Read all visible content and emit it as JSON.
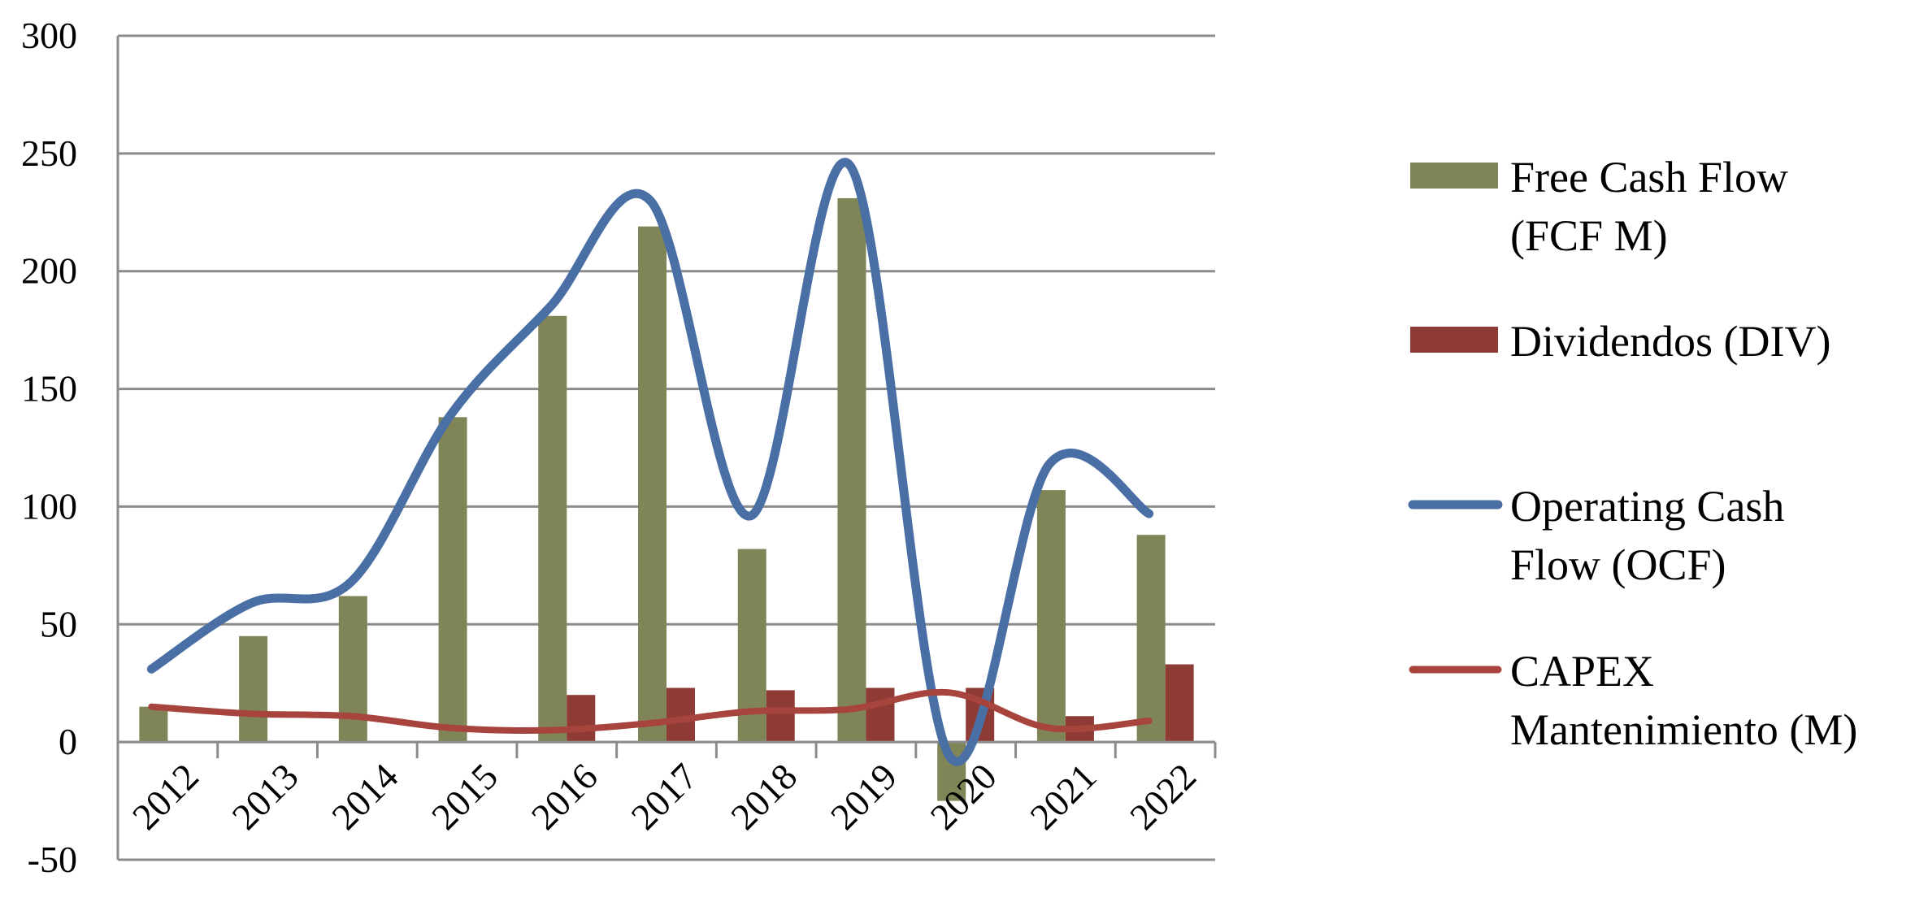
{
  "chart_data": {
    "type": "bar",
    "categories": [
      "2012",
      "2013",
      "2014",
      "2015",
      "2016",
      "2017",
      "2018",
      "2019",
      "2020",
      "2021",
      "2022"
    ],
    "ylim": [
      -50,
      300
    ],
    "yticks": [
      "300",
      "250",
      "200",
      "150",
      "100",
      "50",
      "0",
      "-50"
    ],
    "ytick_values": [
      300,
      250,
      200,
      150,
      100,
      50,
      0,
      -50
    ],
    "grid": true,
    "legend_position": "right",
    "series": [
      {
        "name": "Free Cash Flow (FCF M)",
        "legend_lines": [
          "Free Cash Flow",
          "(FCF M)"
        ],
        "kind": "bar",
        "color": "#7f8556",
        "values": [
          15,
          45,
          62,
          138,
          181,
          219,
          82,
          231,
          -25,
          107,
          88
        ]
      },
      {
        "name": "Dividendos (DIV)",
        "legend_lines": [
          "Dividendos (DIV)"
        ],
        "kind": "bar",
        "color": "#8e3a35",
        "values": [
          0,
          0,
          0,
          0,
          20,
          23,
          22,
          23,
          23,
          11,
          33
        ]
      },
      {
        "name": "Operating Cash Flow (OCF)",
        "legend_lines": [
          "Operating Cash",
          "Flow (OCF)"
        ],
        "kind": "line",
        "color": "#4a6fa5",
        "values": [
          31,
          59,
          68,
          139,
          185,
          230,
          96,
          245,
          -6,
          118,
          97
        ]
      },
      {
        "name": "CAPEX Mantenimiento (M)",
        "legend_lines": [
          "CAPEX",
          "Mantenimiento (M)"
        ],
        "kind": "line",
        "color": "#a8443e",
        "values": [
          15,
          12,
          11,
          6,
          5,
          8,
          13,
          14,
          21,
          6,
          9
        ]
      }
    ]
  }
}
